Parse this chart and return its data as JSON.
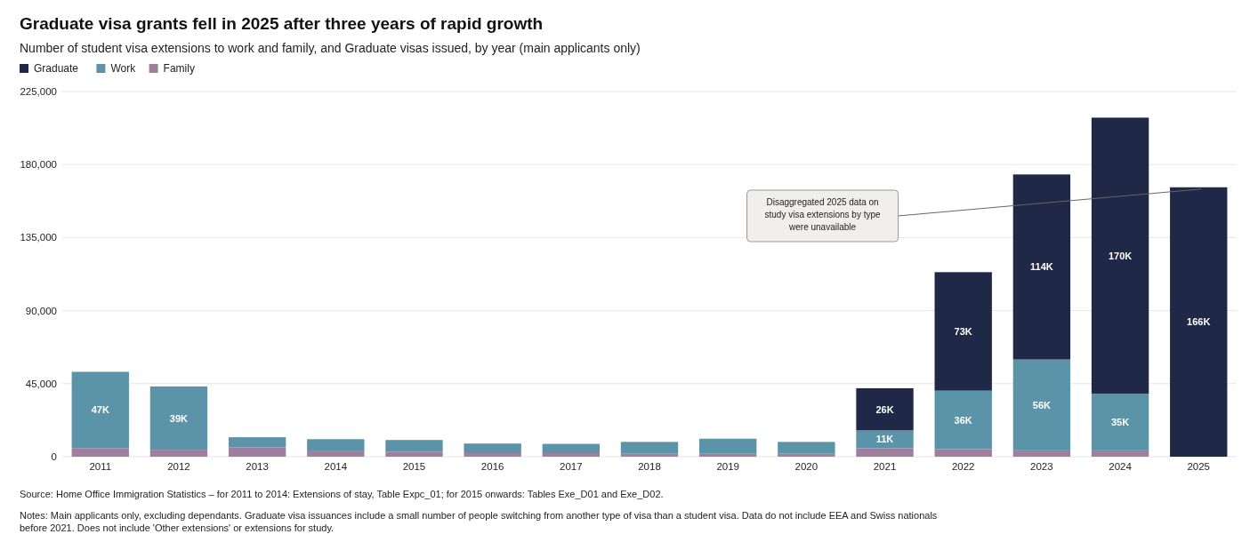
{
  "chart_data": {
    "type": "bar",
    "stacked": true,
    "title": "Graduate visa grants fell in 2025 after three years of rapid growth",
    "subtitle": "Number of student visa extensions to work and family, and Graduate visas issued, by year (main applicants only)",
    "categories": [
      "2011",
      "2012",
      "2013",
      "2014",
      "2015",
      "2016",
      "2017",
      "2018",
      "2019",
      "2020",
      "2021",
      "2022",
      "2023",
      "2024",
      "2025"
    ],
    "series": [
      {
        "name": "Family",
        "color": "#a07e9e",
        "values": [
          5300,
          4300,
          5700,
          3800,
          3100,
          2200,
          2200,
          1800,
          1800,
          1800,
          5200,
          4700,
          3900,
          3900,
          null
        ]
      },
      {
        "name": "Work",
        "color": "#5b93a8",
        "values": [
          47000,
          39000,
          6300,
          7000,
          7200,
          5900,
          5700,
          7300,
          9300,
          7300,
          11000,
          36000,
          56000,
          35000,
          null
        ],
        "value_labels": [
          "47K",
          "39K",
          null,
          null,
          null,
          null,
          null,
          null,
          null,
          null,
          "11K",
          "36K",
          "56K",
          "35K",
          null
        ]
      },
      {
        "name": "Graduate",
        "color": "#1f2846",
        "values": [
          null,
          null,
          null,
          null,
          null,
          null,
          null,
          null,
          null,
          null,
          26000,
          73000,
          114000,
          170000,
          166000
        ],
        "value_labels": [
          null,
          null,
          null,
          null,
          null,
          null,
          null,
          null,
          null,
          null,
          "26K",
          "73K",
          "114K",
          "170K",
          "166K"
        ]
      }
    ],
    "ylim": [
      0,
      225000
    ],
    "yticks": [
      {
        "value": 0,
        "label": "0"
      },
      {
        "value": 45000,
        "label": "45,000"
      },
      {
        "value": 90000,
        "label": "90,000"
      },
      {
        "value": 135000,
        "label": "135,000"
      },
      {
        "value": 180000,
        "label": "180,000"
      },
      {
        "value": 225000,
        "label": "225,000"
      }
    ],
    "grid": "y",
    "legend": "top left",
    "annotations": [
      "Disaggregated 2025 data on study visa extensions by type were unavailable",
      "Source: Home Office Immigration Statistics – for 2011 to 2014: Extensions of stay, Table Expc_01; for 2015 onwards: Tables Exe_D01 and Exe_D02.",
      "Notes: Main applicants only, excluding dependants. Graduate visa issuances include a small number of people switching from another type of visa than a student visa. Data do not include EEA and Swiss nationals before 2021. Does not include 'Other extensions' or extensions for study."
    ]
  }
}
